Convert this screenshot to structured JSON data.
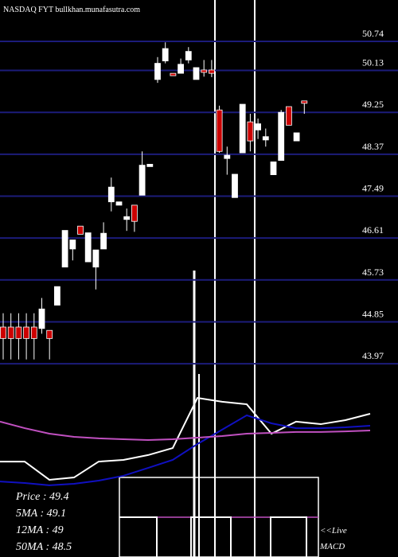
{
  "chart_data": [
    {
      "type": "candlestick",
      "title": "NASDAQ FYT bullkhan.munafasutra.com",
      "categories": [
        null,
        null,
        null,
        null,
        null,
        null,
        null,
        null,
        null,
        null,
        null,
        null,
        null,
        null,
        null,
        null,
        null,
        null,
        null,
        null,
        null,
        null,
        null,
        null,
        null,
        null,
        null,
        null,
        null,
        null,
        null,
        null,
        null,
        null,
        null,
        null,
        null,
        null,
        null,
        null
      ],
      "open": [
        44.74,
        44.74,
        44.74,
        44.74,
        44.74,
        44.71,
        44.67,
        45.2,
        46.0,
        46.38,
        46.86,
        46.11,
        46.0,
        46.38,
        47.37,
        47.3,
        47.0,
        47.3,
        47.51,
        48.11,
        49.94,
        50.33,
        50.07,
        50.07,
        50.35,
        49.94,
        50.14,
        50.14,
        49.3,
        48.28,
        47.46,
        48.4,
        49.05,
        48.88,
        48.67,
        47.94,
        48.24,
        49.37,
        48.65,
        49.49
      ],
      "high": [
        45.03,
        45.03,
        45.03,
        45.03,
        45.03,
        45.35,
        44.67,
        45.59,
        46.77,
        46.57,
        46.86,
        46.72,
        46.36,
        46.94,
        47.88,
        47.37,
        47.23,
        47.3,
        48.43,
        48.16,
        50.41,
        50.72,
        50.07,
        50.38,
        50.62,
        50.19,
        50.35,
        50.35,
        49.39,
        48.53,
        47.95,
        49.42,
        49.22,
        49.12,
        48.91,
        48.21,
        49.3,
        49.37,
        48.82,
        49.49
      ],
      "low": [
        44.06,
        44.06,
        44.06,
        44.06,
        44.06,
        44.6,
        44.06,
        45.2,
        46.0,
        46.14,
        46.69,
        46.11,
        45.53,
        46.38,
        47.17,
        47.3,
        46.76,
        46.74,
        47.51,
        48.11,
        49.87,
        50.28,
        50.02,
        50.07,
        50.28,
        49.94,
        50.0,
        49.99,
        48.4,
        47.94,
        47.46,
        48.4,
        48.43,
        48.69,
        48.53,
        47.94,
        48.24,
        48.98,
        48.65,
        49.22
      ],
      "close": [
        44.5,
        44.5,
        44.5,
        44.5,
        44.5,
        45.12,
        44.5,
        45.59,
        46.77,
        46.57,
        46.69,
        46.72,
        46.36,
        46.71,
        47.68,
        47.37,
        47.06,
        46.96,
        48.14,
        48.16,
        50.28,
        50.59,
        50.02,
        50.26,
        50.53,
        50.19,
        50.09,
        50.07,
        48.43,
        48.35,
        47.95,
        49.42,
        48.65,
        49.01,
        48.74,
        48.21,
        49.25,
        48.98,
        48.82,
        49.44
      ],
      "up_color": "#ffffff",
      "down_color": "#cc0000",
      "ylim": [
        43.42,
        51.61
      ],
      "yticks": [
        50.74,
        50.13,
        49.25,
        48.37,
        47.49,
        46.61,
        45.73,
        44.85,
        43.97
      ],
      "grid": true,
      "annotations": [
        "Price : 49.4",
        "5MA : 49.1",
        "12MA : 49",
        "50MA : 48.5",
        "<<Live",
        "MACD"
      ]
    },
    {
      "type": "line",
      "categories": [
        null,
        null,
        null,
        null,
        null,
        null,
        null,
        null,
        null,
        null,
        null,
        null,
        null,
        null,
        null,
        null
      ],
      "ylim": [
        0,
        100
      ],
      "series": [
        {
          "color": "#ffffff",
          "values": [
            57.1,
            57.1,
            46.2,
            47.6,
            57.1,
            58.1,
            61.0,
            65.2,
            95.2,
            92.9,
            91.4,
            73.8,
            81.0,
            79.5,
            81.9,
            85.7
          ]
        },
        {
          "color": "#1010c0",
          "values": [
            45.2,
            44.3,
            42.9,
            43.8,
            45.7,
            48.6,
            53.3,
            58.1,
            67.6,
            76.2,
            84.8,
            80.0,
            77.1,
            77.1,
            77.6,
            78.6
          ]
        },
        {
          "color": "#c050c0",
          "values": [
            81.0,
            77.1,
            73.8,
            71.9,
            71.0,
            70.5,
            70.0,
            70.5,
            71.4,
            72.4,
            73.8,
            74.3,
            74.8,
            74.8,
            75.2,
            75.7
          ]
        }
      ]
    }
  ]
}
